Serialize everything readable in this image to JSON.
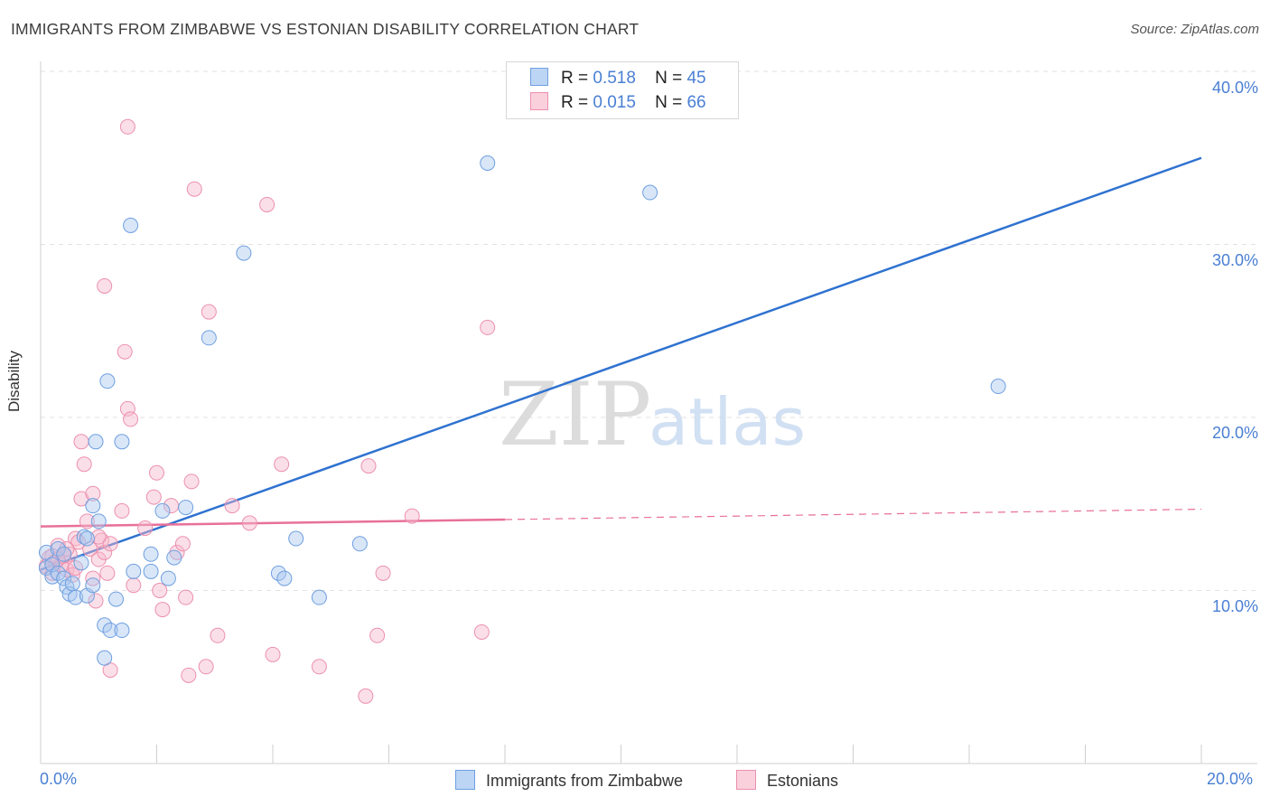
{
  "title": "IMMIGRANTS FROM ZIMBABWE VS ESTONIAN DISABILITY CORRELATION CHART",
  "source": "Source: ZipAtlas.com",
  "watermark": {
    "zip": "ZIP",
    "atlas": "atlas"
  },
  "legend_top": {
    "series1": {
      "r_label": "R =",
      "r_value": "0.518",
      "n_label": "N =",
      "n_value": "45"
    },
    "series2": {
      "r_label": "R =",
      "r_value": "0.015",
      "n_label": "N =",
      "n_value": "66"
    }
  },
  "colors": {
    "blue_fill": "#a9c8f0",
    "blue_stroke": "#6f9fe0",
    "blue_line": "#2f72d0",
    "pink_fill": "#f6b9cc",
    "pink_stroke": "#ec90ae",
    "pink_line": "#e8709a",
    "grid": "#e2e2e2",
    "tick_text": "#4a7fd4"
  },
  "chart_data": {
    "type": "scatter",
    "xlabel": "",
    "ylabel": "Disability",
    "xlim": [
      0,
      20
    ],
    "ylim": [
      0,
      40
    ],
    "x_tick_labels": [
      "0.0%",
      "20.0%"
    ],
    "y_ticks": [
      10,
      20,
      30,
      40
    ],
    "y_tick_labels": [
      "10.0%",
      "20.0%",
      "30.0%",
      "40.0%"
    ],
    "grid": true,
    "legend_position": "top-center",
    "series": [
      {
        "name": "Immigrants from Zimbabwe",
        "color": "#a9c8f0",
        "trend": {
          "x0": 0.0,
          "y0": 11.2,
          "x1": 20.0,
          "y1": 35.0,
          "style": "solid"
        },
        "points": [
          [
            0.1,
            12.2
          ],
          [
            0.1,
            11.3
          ],
          [
            0.2,
            10.8
          ],
          [
            0.2,
            11.5
          ],
          [
            0.3,
            12.4
          ],
          [
            0.3,
            11.0
          ],
          [
            0.4,
            12.1
          ],
          [
            0.4,
            10.7
          ],
          [
            0.45,
            10.2
          ],
          [
            0.5,
            9.8
          ],
          [
            0.55,
            10.4
          ],
          [
            0.6,
            9.6
          ],
          [
            0.7,
            11.6
          ],
          [
            0.75,
            13.1
          ],
          [
            0.8,
            9.7
          ],
          [
            0.8,
            13.0
          ],
          [
            0.9,
            14.9
          ],
          [
            0.9,
            10.3
          ],
          [
            0.95,
            18.6
          ],
          [
            1.0,
            14.0
          ],
          [
            1.1,
            8.0
          ],
          [
            1.1,
            6.1
          ],
          [
            1.15,
            22.1
          ],
          [
            1.2,
            7.7
          ],
          [
            1.3,
            9.5
          ],
          [
            1.4,
            18.6
          ],
          [
            1.4,
            7.7
          ],
          [
            1.55,
            31.1
          ],
          [
            1.6,
            11.1
          ],
          [
            1.9,
            12.1
          ],
          [
            1.9,
            11.1
          ],
          [
            2.1,
            14.6
          ],
          [
            2.2,
            10.7
          ],
          [
            2.3,
            11.9
          ],
          [
            2.5,
            14.8
          ],
          [
            2.9,
            24.6
          ],
          [
            3.5,
            29.5
          ],
          [
            4.1,
            11.0
          ],
          [
            4.2,
            10.7
          ],
          [
            4.4,
            13.0
          ],
          [
            4.8,
            9.6
          ],
          [
            5.5,
            12.7
          ],
          [
            7.7,
            34.7
          ],
          [
            10.5,
            33.0
          ],
          [
            16.5,
            21.8
          ]
        ]
      },
      {
        "name": "Estonians",
        "color": "#f6b9cc",
        "trend": {
          "x0": 0.0,
          "y0": 13.7,
          "x1": 8.0,
          "y1": 14.1,
          "x2": 20.0,
          "y2": 14.7,
          "style": "solid-then-dashed"
        },
        "points": [
          [
            0.1,
            11.4
          ],
          [
            0.15,
            11.9
          ],
          [
            0.2,
            11.0
          ],
          [
            0.25,
            11.7
          ],
          [
            0.3,
            12.6
          ],
          [
            0.35,
            11.5
          ],
          [
            0.4,
            12.0
          ],
          [
            0.45,
            11.2
          ],
          [
            0.5,
            12.1
          ],
          [
            0.55,
            10.9
          ],
          [
            0.6,
            13.0
          ],
          [
            0.65,
            12.8
          ],
          [
            0.7,
            18.6
          ],
          [
            0.7,
            15.3
          ],
          [
            0.75,
            17.3
          ],
          [
            0.8,
            14.0
          ],
          [
            0.85,
            12.4
          ],
          [
            0.9,
            10.7
          ],
          [
            0.9,
            15.6
          ],
          [
            0.95,
            9.4
          ],
          [
            1.0,
            11.8
          ],
          [
            1.05,
            12.9
          ],
          [
            1.1,
            27.6
          ],
          [
            1.1,
            12.2
          ],
          [
            1.15,
            11.0
          ],
          [
            1.2,
            12.7
          ],
          [
            1.2,
            5.4
          ],
          [
            1.4,
            14.6
          ],
          [
            1.45,
            23.8
          ],
          [
            1.5,
            36.8
          ],
          [
            1.5,
            20.5
          ],
          [
            1.55,
            19.9
          ],
          [
            1.6,
            10.3
          ],
          [
            1.8,
            13.6
          ],
          [
            1.95,
            15.4
          ],
          [
            2.0,
            16.8
          ],
          [
            2.05,
            10.0
          ],
          [
            2.1,
            8.9
          ],
          [
            2.25,
            14.9
          ],
          [
            2.35,
            12.2
          ],
          [
            2.45,
            12.7
          ],
          [
            2.5,
            9.6
          ],
          [
            2.55,
            5.1
          ],
          [
            2.6,
            16.3
          ],
          [
            2.65,
            33.2
          ],
          [
            2.85,
            5.6
          ],
          [
            2.9,
            26.1
          ],
          [
            3.05,
            7.4
          ],
          [
            3.3,
            14.9
          ],
          [
            3.6,
            13.9
          ],
          [
            3.9,
            32.3
          ],
          [
            4.0,
            6.3
          ],
          [
            4.15,
            17.3
          ],
          [
            4.8,
            5.6
          ],
          [
            5.6,
            3.9
          ],
          [
            5.65,
            17.2
          ],
          [
            5.8,
            7.4
          ],
          [
            5.9,
            11.0
          ],
          [
            6.4,
            14.3
          ],
          [
            7.6,
            7.6
          ],
          [
            7.7,
            25.2
          ],
          [
            0.3,
            11.8
          ],
          [
            0.45,
            12.4
          ],
          [
            0.6,
            11.3
          ],
          [
            1.0,
            13.1
          ],
          [
            0.2,
            12.0
          ]
        ]
      }
    ]
  },
  "bottom_legend": [
    {
      "label": "Immigrants from Zimbabwe"
    },
    {
      "label": "Estonians"
    }
  ]
}
